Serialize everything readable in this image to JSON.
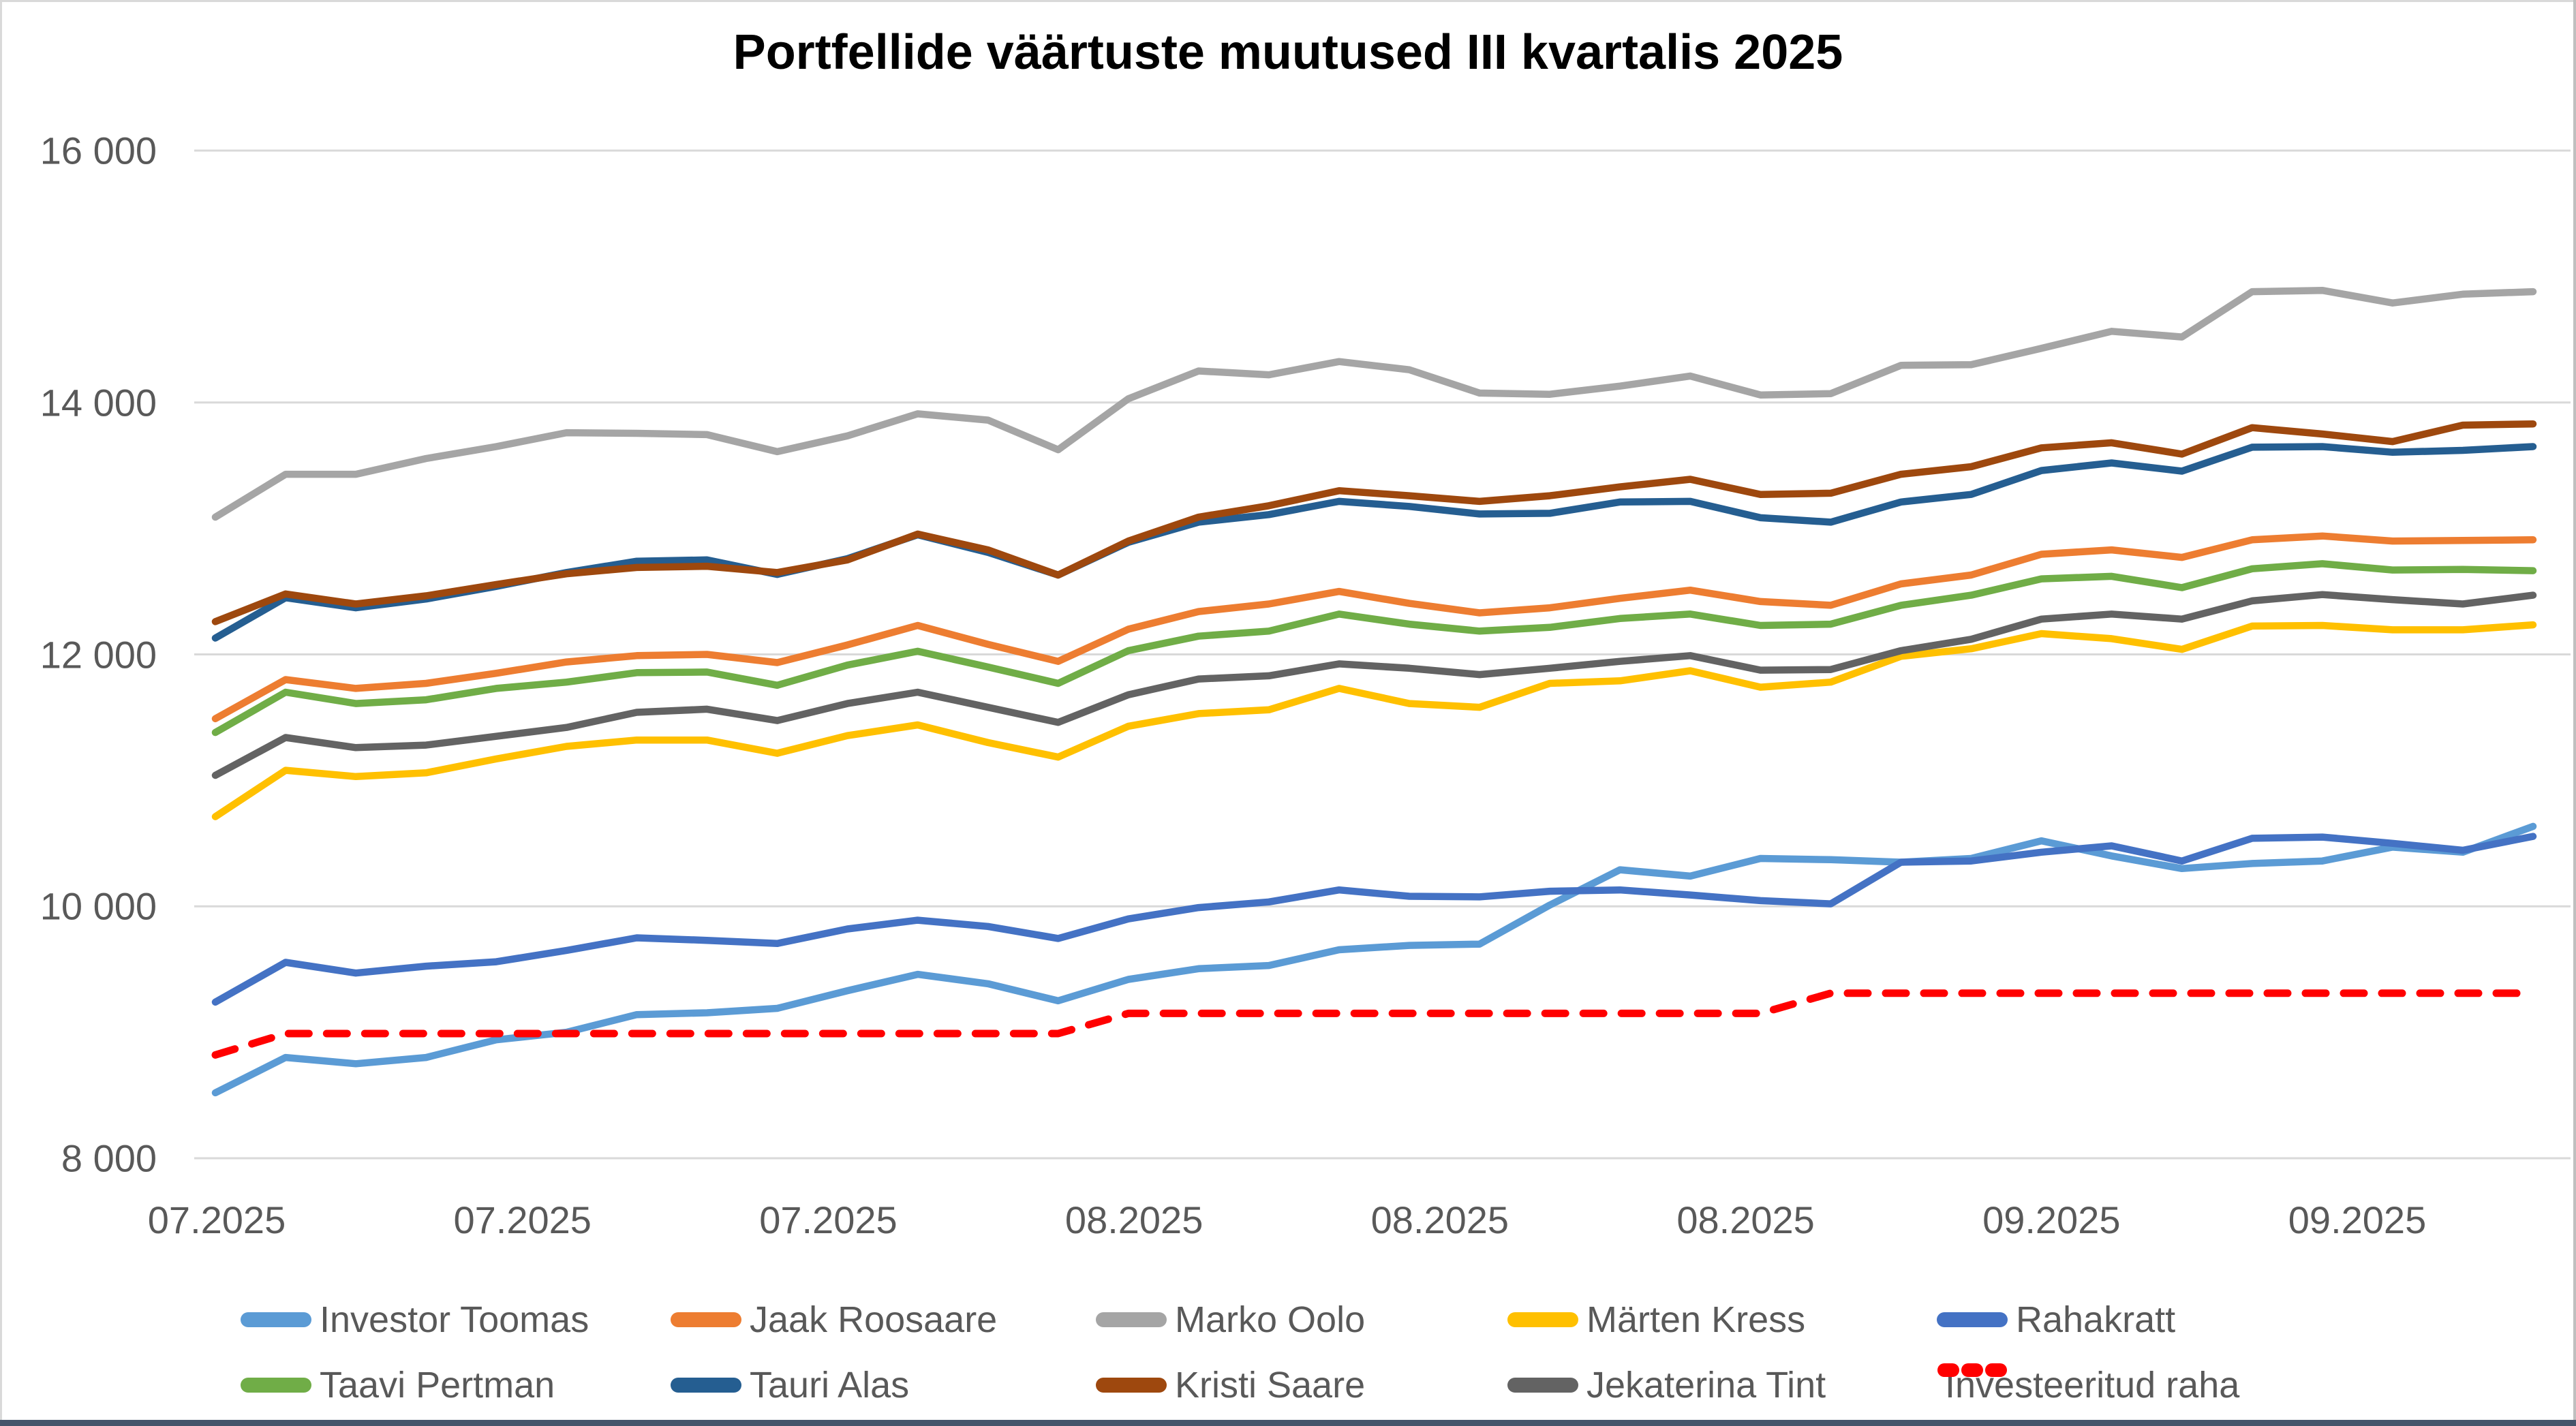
{
  "chart_data": {
    "type": "line",
    "title": "Portfellide väärtuste muutused III kvartalis 2025",
    "xlabel": "",
    "ylabel": "",
    "ylim": [
      8000,
      16000
    ],
    "y_tick_labels": [
      "16 000",
      "14 000",
      "12 000",
      "10 000",
      "8 000"
    ],
    "y_tick_values": [
      16000,
      14000,
      12000,
      10000,
      8000
    ],
    "x_tick_labels": [
      "07.2025",
      "07.2025",
      "07.2025",
      "08.2025",
      "08.2025",
      "08.2025",
      "09.2025",
      "09.2025"
    ],
    "grid": "horizontal",
    "gridline_color": "#d9d9d9",
    "legend_position": "bottom",
    "axis_text_color": "#595959",
    "series": [
      {
        "name": "Investor Toomas",
        "color": "#5B9BD5",
        "dashed": false,
        "values": [
          8520,
          8800,
          8750,
          8800,
          8940,
          9000,
          9140,
          9155,
          9190,
          9330,
          9460,
          9385,
          9250,
          9420,
          9505,
          9530,
          9655,
          9690,
          9700,
          10010,
          10290,
          10240,
          10380,
          10370,
          10350,
          10380,
          10520,
          10400,
          10300,
          10340,
          10360,
          10470,
          10430,
          10635
        ]
      },
      {
        "name": "Jaak Roosaare",
        "color": "#ED7D31",
        "dashed": false,
        "values": [
          11490,
          11800,
          11730,
          11770,
          11850,
          11940,
          11990,
          12000,
          11935,
          12075,
          12230,
          12080,
          11945,
          12200,
          12340,
          12400,
          12500,
          12405,
          12330,
          12370,
          12445,
          12510,
          12420,
          12390,
          12560,
          12630,
          12795,
          12830,
          12770,
          12910,
          12940,
          12900,
          12905,
          12910
        ]
      },
      {
        "name": "Marko Oolo",
        "color": "#A5A5A5",
        "dashed": false,
        "values": [
          13090,
          13430,
          13430,
          13555,
          13650,
          13760,
          13755,
          13745,
          13610,
          13735,
          13910,
          13860,
          13625,
          14030,
          14250,
          14220,
          14325,
          14260,
          14075,
          14065,
          14130,
          14210,
          14060,
          14070,
          14295,
          14300,
          14430,
          14565,
          14520,
          14880,
          14890,
          14790,
          14860,
          14880
        ]
      },
      {
        "name": "Märten Kress",
        "color": "#FFC000",
        "dashed": false,
        "values": [
          10712,
          11080,
          11030,
          11060,
          11170,
          11270,
          11320,
          11320,
          11215,
          11355,
          11440,
          11300,
          11185,
          11430,
          11530,
          11560,
          11730,
          11610,
          11580,
          11770,
          11790,
          11870,
          11740,
          11780,
          11985,
          12045,
          12165,
          12125,
          12040,
          12225,
          12230,
          12195,
          12195,
          12235
        ]
      },
      {
        "name": "Rahakratt",
        "color": "#4472C4",
        "dashed": false,
        "values": [
          9240,
          9555,
          9470,
          9525,
          9560,
          9650,
          9750,
          9730,
          9705,
          9820,
          9890,
          9840,
          9745,
          9900,
          9990,
          10035,
          10130,
          10080,
          10075,
          10120,
          10130,
          10090,
          10045,
          10020,
          10350,
          10360,
          10430,
          10480,
          10360,
          10540,
          10550,
          10500,
          10445,
          10555
        ]
      },
      {
        "name": "Taavi Pertman",
        "color": "#70AD47",
        "dashed": false,
        "values": [
          11380,
          11700,
          11610,
          11640,
          11730,
          11780,
          11855,
          11860,
          11755,
          11915,
          12025,
          11900,
          11770,
          12030,
          12145,
          12185,
          12320,
          12240,
          12185,
          12215,
          12285,
          12320,
          12230,
          12240,
          12390,
          12470,
          12600,
          12620,
          12530,
          12680,
          12720,
          12670,
          12675,
          12665
        ]
      },
      {
        "name": "Tauri Alas",
        "color": "#255E91",
        "dashed": false,
        "values": [
          12130,
          12450,
          12370,
          12440,
          12540,
          12650,
          12740,
          12750,
          12635,
          12760,
          12950,
          12810,
          12630,
          12890,
          13050,
          13110,
          13215,
          13175,
          13115,
          13120,
          13210,
          13215,
          13085,
          13050,
          13210,
          13270,
          13460,
          13520,
          13455,
          13645,
          13650,
          13605,
          13620,
          13650
        ]
      },
      {
        "name": "Kristi Saare",
        "color": "#9E480E",
        "dashed": false,
        "values": [
          12260,
          12480,
          12400,
          12465,
          12555,
          12640,
          12690,
          12700,
          12650,
          12750,
          12955,
          12830,
          12630,
          12900,
          13090,
          13180,
          13300,
          13260,
          13215,
          13260,
          13330,
          13390,
          13270,
          13280,
          13430,
          13490,
          13640,
          13680,
          13590,
          13800,
          13750,
          13690,
          13820,
          13830
        ]
      },
      {
        "name": "Jekaterina Tint",
        "color": "#636363",
        "dashed": false,
        "values": [
          11040,
          11340,
          11260,
          11280,
          11350,
          11420,
          11540,
          11565,
          11475,
          11610,
          11700,
          11580,
          11460,
          11680,
          11805,
          11830,
          11925,
          11890,
          11840,
          11890,
          11945,
          11990,
          11875,
          11880,
          12030,
          12120,
          12280,
          12320,
          12280,
          12425,
          12475,
          12435,
          12400,
          12470
        ]
      },
      {
        "name": "Investeeritud raha",
        "color": "#FF0000",
        "dashed": true,
        "values": [
          8820,
          8990,
          8990,
          8990,
          8990,
          8990,
          8990,
          8990,
          8990,
          8990,
          8990,
          8990,
          8990,
          9150,
          9150,
          9150,
          9150,
          9150,
          9150,
          9150,
          9150,
          9150,
          9150,
          9310,
          9310,
          9310,
          9310,
          9310,
          9310,
          9310,
          9310,
          9310,
          9310,
          9310
        ]
      }
    ]
  }
}
